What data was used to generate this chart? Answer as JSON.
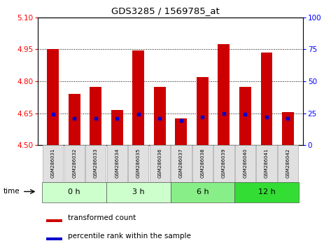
{
  "title": "GDS3285 / 1569785_at",
  "samples": [
    "GSM286031",
    "GSM286032",
    "GSM286033",
    "GSM286034",
    "GSM286035",
    "GSM286036",
    "GSM286037",
    "GSM286038",
    "GSM286039",
    "GSM286040",
    "GSM286041",
    "GSM286042"
  ],
  "transformed_count": [
    4.95,
    4.74,
    4.775,
    4.665,
    4.945,
    4.775,
    4.625,
    4.82,
    4.975,
    4.775,
    4.935,
    4.655
  ],
  "percentile_rank": [
    24,
    21,
    21,
    21,
    24,
    21,
    19,
    22,
    25,
    24,
    22,
    21
  ],
  "ylim_left": [
    4.5,
    5.1
  ],
  "ylim_right": [
    0,
    100
  ],
  "yticks_left": [
    4.5,
    4.65,
    4.8,
    4.95,
    5.1
  ],
  "yticks_right": [
    0,
    25,
    50,
    75,
    100
  ],
  "bar_color": "#cc0000",
  "percentile_color": "#0000cc",
  "bar_bottom": 4.5,
  "bar_width": 0.55,
  "group_info": [
    {
      "label": "0 h",
      "start": 0,
      "end": 2,
      "color": "#ccffcc"
    },
    {
      "label": "3 h",
      "start": 3,
      "end": 5,
      "color": "#ccffcc"
    },
    {
      "label": "6 h",
      "start": 6,
      "end": 8,
      "color": "#88ee88"
    },
    {
      "label": "12 h",
      "start": 9,
      "end": 11,
      "color": "#33dd33"
    }
  ]
}
